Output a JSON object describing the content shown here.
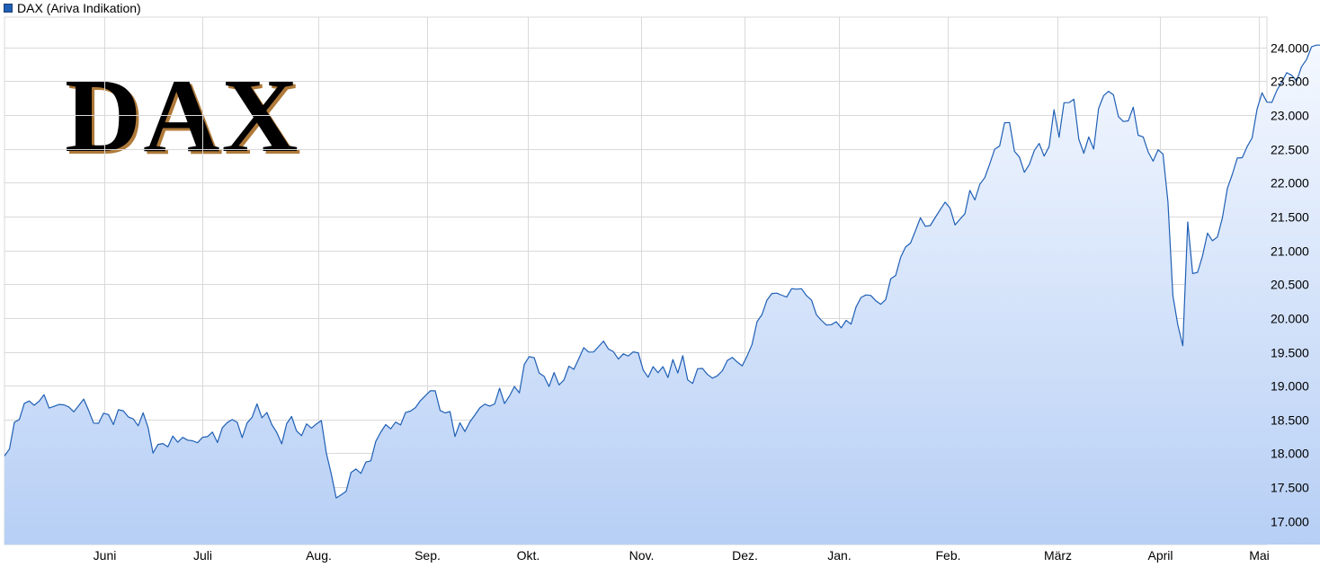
{
  "legend": {
    "label": "DAX (Ariva Indikation)",
    "color": "#1f5fb5"
  },
  "watermark": {
    "text": "DAX"
  },
  "colors": {
    "line": "#1f5fb5",
    "area_top": "#f4f8ff",
    "area_bottom": "#b7cff5",
    "grid": "#d9d9d9"
  },
  "chart_data": {
    "type": "area",
    "title": "",
    "xlabel": "",
    "ylabel": "",
    "series": [
      {
        "name": "DAX (Ariva Indikation)"
      }
    ],
    "x_tick_labels": [
      "Juni",
      "Juli",
      "Aug.",
      "Sep.",
      "Okt.",
      "Nov.",
      "Dez.",
      "Jan.",
      "Feb.",
      "März",
      "April",
      "Mai"
    ],
    "y_tick_labels": [
      "17.000",
      "17.500",
      "18.000",
      "18.500",
      "19.000",
      "19.500",
      "20.000",
      "20.500",
      "21.000",
      "21.500",
      "22.000",
      "22.500",
      "23.000",
      "23.500",
      "24.000"
    ],
    "y_ticks": [
      17000,
      17500,
      18000,
      18500,
      19000,
      19500,
      20000,
      20500,
      21000,
      21500,
      22000,
      22500,
      23000,
      23500,
      24000
    ],
    "ylim": [
      16650,
      24450
    ],
    "axis_position": "right",
    "grid": true,
    "legend_position": "top-left",
    "x_index_range": [
      0,
      255
    ],
    "x_tick_index": [
      20.2,
      40,
      63.3,
      85.3,
      105.7,
      128.6,
      149.4,
      168.5,
      190.6,
      212.6,
      233.3,
      253.4
    ],
    "values": [
      17960,
      18063,
      18458,
      18500,
      18737,
      18773,
      18709,
      18770,
      18865,
      18668,
      18694,
      18722,
      18716,
      18684,
      18613,
      18705,
      18801,
      18633,
      18446,
      18444,
      18591,
      18573,
      18425,
      18643,
      18628,
      18538,
      18507,
      18407,
      18598,
      18380,
      18003,
      18130,
      18144,
      18096,
      18254,
      18164,
      18235,
      18194,
      18185,
      18156,
      18237,
      18246,
      18313,
      18160,
      18379,
      18455,
      18498,
      18458,
      18232,
      18448,
      18531,
      18729,
      18525,
      18603,
      18424,
      18308,
      18140,
      18437,
      18543,
      18329,
      18261,
      18435,
      18372,
      18434,
      18484,
      18004,
      17695,
      17339,
      17386,
      17437,
      17716,
      17767,
      17702,
      17870,
      17888,
      18175,
      18311,
      18424,
      18361,
      18461,
      18418,
      18602,
      18623,
      18675,
      18778,
      18851,
      18923,
      18923,
      18632,
      18597,
      18617,
      18247,
      18450,
      18322,
      18465,
      18565,
      18671,
      18727,
      18698,
      18729,
      18961,
      18735,
      18848,
      18988,
      18893,
      19315,
      19430,
      19413,
      19187,
      19139,
      18987,
      19193,
      19011,
      19085,
      19287,
      19241,
      19399,
      19561,
      19496,
      19498,
      19579,
      19659,
      19541,
      19502,
      19392,
      19470,
      19438,
      19499,
      19486,
      19230,
      19124,
      19281,
      19191,
      19281,
      19120,
      19386,
      19186,
      19443,
      19086,
      19033,
      19250,
      19255,
      19165,
      19111,
      19146,
      19221,
      19373,
      19418,
      19349,
      19293,
      19438,
      19611,
      19946,
      20051,
      20263,
      20362,
      20368,
      20338,
      20309,
      20434,
      20426,
      20433,
      20330,
      20266,
      20047,
      19965,
      19896,
      19902,
      19945,
      19854,
      19965,
      19910,
      20162,
      20303,
      20341,
      20334,
      20255,
      20203,
      20272,
      20580,
      20630,
      20896,
      21049,
      21108,
      21290,
      21481,
      21356,
      21367,
      21487,
      21602,
      21714,
      21622,
      21377,
      21460,
      21543,
      21887,
      21746,
      21978,
      22075,
      22279,
      22495,
      22543,
      22888,
      22891,
      22465,
      22380,
      22155,
      22268,
      22474,
      22582,
      22395,
      22533,
      23080,
      22672,
      23184,
      23185,
      23234,
      22644,
      22436,
      22677,
      22498,
      23100,
      23286,
      23353,
      23301,
      22978,
      22906,
      22915,
      23117,
      22703,
      22677,
      22455,
      22319,
      22488,
      22425,
      21717,
      20329,
      19897,
      19590,
      21421,
      20658,
      20676,
      20924,
      21255,
      21143,
      21198,
      21478,
      21917,
      22125,
      22365,
      22371,
      22535,
      22663,
      23086,
      23330,
      23192,
      23189,
      23365,
      23491,
      23628,
      23589,
      23504,
      23716,
      23821,
      24010,
      24035,
      24035
    ]
  }
}
